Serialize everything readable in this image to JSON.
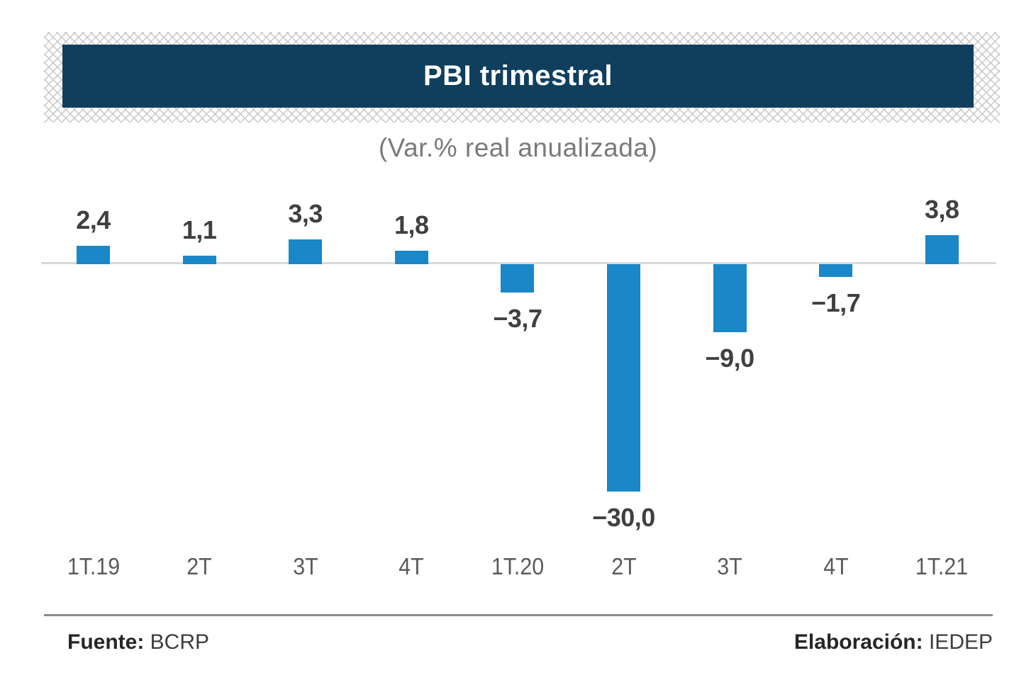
{
  "banner": {
    "title": "PBI trimestral",
    "bg_color": "#103F5E",
    "text_color": "#FFFFFF"
  },
  "subtitle": "(Var.% real anualizada)",
  "chart_data": {
    "type": "bar",
    "title": "PBI trimestral",
    "subtitle": "(Var.% real anualizada)",
    "categories": [
      "1T.19",
      "2T",
      "3T",
      "4T",
      "1T.20",
      "2T",
      "3T",
      "4T",
      "1T.21"
    ],
    "values": [
      2.4,
      1.1,
      3.3,
      1.8,
      -3.7,
      -30.0,
      -9.0,
      -1.7,
      3.8
    ],
    "value_labels": [
      "2,4",
      "1,1",
      "3,3",
      "1,8",
      "−3,7",
      "−30,0",
      "−9,0",
      "−1,7",
      "3,8"
    ],
    "bar_color": "#1987C8",
    "baseline_color": "#D9D9D9",
    "value_label_color": "#404040",
    "tick_label_color": "#5A5A5A",
    "ylim": [
      -32,
      6
    ],
    "grid": false,
    "legend": false,
    "baseline_value": 0
  },
  "footer": {
    "source_label": "Fuente:",
    "source_value": "BCRP",
    "elaboration_label": "Elaboración:",
    "elaboration_value": "IEDEP"
  }
}
